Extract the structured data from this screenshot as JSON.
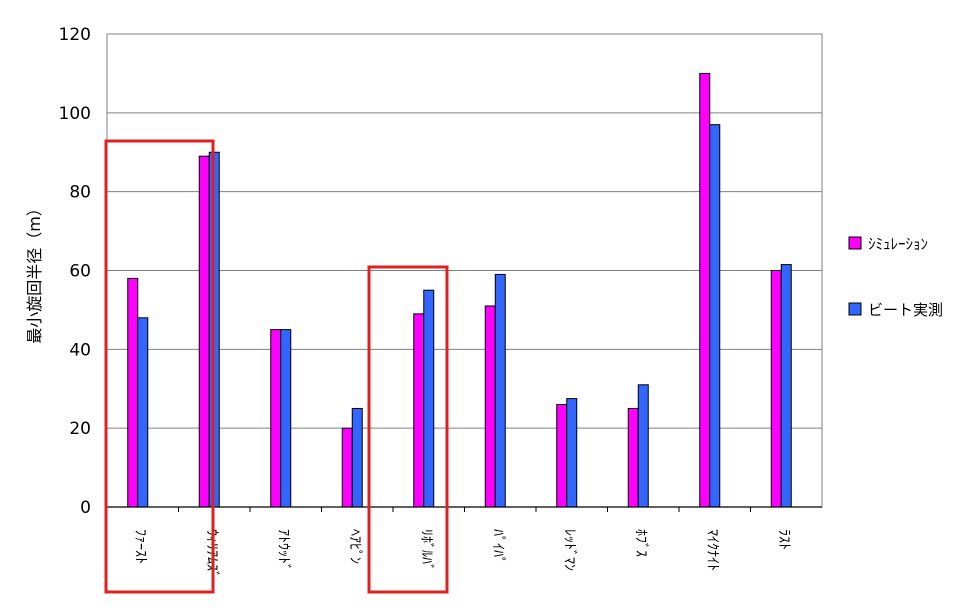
{
  "chart_data": {
    "type": "bar",
    "title": "",
    "xlabel": "",
    "ylabel": "最小旋回半径（m）",
    "ylim": [
      0,
      120
    ],
    "yticks": [
      0,
      20,
      40,
      60,
      80,
      100,
      120
    ],
    "grid": true,
    "legend_position": "right",
    "categories": [
      "ﾌｧｰｽﾄ",
      "ｳｨﾘｱﾑｽﾞ",
      "ｱﾄｳｯﾄﾞ",
      "ﾍｱﾋﾟﾝ",
      "ﾘﾎﾞﾙﾊﾞ",
      "ﾊﾟｲﾊﾟ",
      "ﾚｯﾄﾞﾏﾝ",
      "ﾎﾌﾞｽ",
      "ﾏｲｸﾅｲﾄ",
      "ﾗｽﾄ"
    ],
    "series": [
      {
        "name": "ｼﾐｭﾚｰｼｮﾝ",
        "color": "#ff00ff",
        "values": [
          58,
          89,
          45,
          20,
          49,
          51,
          26,
          25,
          110,
          60
        ]
      },
      {
        "name": "ビート実測",
        "color": "#3366ff",
        "values": [
          48,
          90,
          45,
          25,
          55,
          59,
          27.5,
          31,
          97,
          61.5
        ]
      }
    ],
    "highlighted_categories": [
      "ﾌｧｰｽﾄ",
      "ｳｨﾘｱﾑｽﾞ",
      "ﾘﾎﾞﾙﾊﾞ"
    ],
    "highlight_color": "#e02020"
  }
}
